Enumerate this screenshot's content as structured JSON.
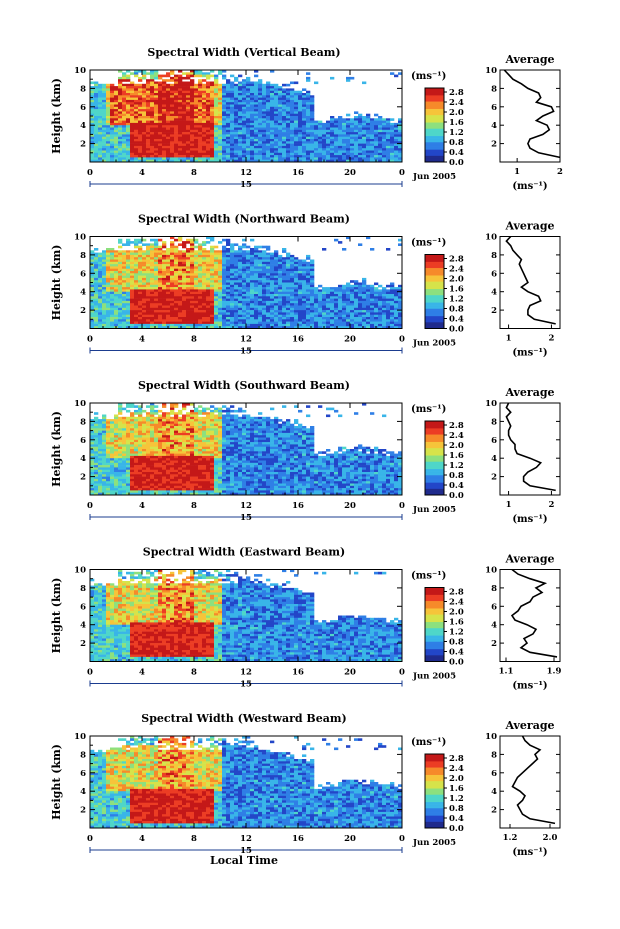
{
  "chart_data": [
    {
      "type": "heatmap",
      "title": "Spectral Width (Vertical Beam)",
      "ylabel": "Height (km)",
      "yticks": [
        "2",
        "4",
        "6",
        "8",
        "10"
      ],
      "xticks": [
        "0",
        "4",
        "8",
        "12",
        "16",
        "20",
        "0"
      ],
      "date_day": "15",
      "date_month": "Jun 2005",
      "colorbar_unit": "(ms⁻¹)",
      "colorbar_ticks": [
        "2.8",
        "2.4",
        "2.0",
        "1.6",
        "1.2",
        "0.8",
        "0.4",
        "0.0"
      ],
      "average": {
        "title": "Average",
        "xlabel": "(ms⁻¹)",
        "xticks": [
          "1",
          "2"
        ],
        "xlim": [
          0.6,
          2.0
        ],
        "yticks": [
          "2",
          "4",
          "6",
          "8",
          "10"
        ],
        "height_km": [
          0.5,
          1.0,
          1.5,
          2.0,
          2.5,
          3.0,
          3.5,
          4.0,
          4.5,
          5.0,
          5.5,
          6.0,
          6.5,
          7.0,
          7.5,
          8.0,
          8.5,
          9.0,
          9.5,
          10.0
        ],
        "width_ms": [
          2.0,
          1.5,
          1.3,
          1.25,
          1.3,
          1.6,
          1.75,
          1.7,
          1.45,
          1.6,
          1.85,
          1.8,
          1.45,
          1.55,
          1.5,
          1.25,
          1.1,
          0.9,
          0.8,
          0.7
        ]
      }
    },
    {
      "type": "heatmap",
      "title": "Spectral Width (Northward Beam)",
      "ylabel": "Height (km)",
      "yticks": [
        "2",
        "4",
        "6",
        "8",
        "10"
      ],
      "xticks": [
        "0",
        "4",
        "8",
        "12",
        "16",
        "20",
        "0"
      ],
      "date_day": "15",
      "date_month": "Jun 2005",
      "colorbar_unit": "(ms⁻¹)",
      "colorbar_ticks": [
        "2.8",
        "2.4",
        "2.0",
        "1.6",
        "1.2",
        "0.8",
        "0.4",
        "0.0"
      ],
      "average": {
        "title": "Average",
        "xlabel": "(ms⁻¹)",
        "xticks": [
          "1",
          "2"
        ],
        "xlim": [
          0.8,
          2.2
        ],
        "yticks": [
          "2",
          "4",
          "6",
          "8",
          "10"
        ],
        "height_km": [
          0.5,
          1.0,
          1.5,
          2.0,
          2.5,
          3.0,
          3.5,
          4.0,
          4.5,
          5.0,
          5.5,
          6.0,
          6.5,
          7.0,
          7.5,
          8.0,
          8.5,
          9.0,
          9.5,
          10.0
        ],
        "width_ms": [
          2.1,
          1.6,
          1.45,
          1.45,
          1.5,
          1.75,
          1.7,
          1.45,
          1.3,
          1.45,
          1.4,
          1.35,
          1.3,
          1.25,
          1.3,
          1.2,
          1.1,
          1.05,
          0.95,
          1.05
        ]
      }
    },
    {
      "type": "heatmap",
      "title": "Spectral Width (Southward Beam)",
      "ylabel": "Height (km)",
      "yticks": [
        "2",
        "4",
        "6",
        "8",
        "10"
      ],
      "xticks": [
        "0",
        "4",
        "8",
        "12",
        "16",
        "20",
        "0"
      ],
      "date_day": "15",
      "date_month": "Jun 2005",
      "colorbar_unit": "(ms⁻¹)",
      "colorbar_ticks": [
        "2.8",
        "2.4",
        "2.0",
        "1.6",
        "1.2",
        "0.8",
        "0.4",
        "0.0"
      ],
      "average": {
        "title": "Average",
        "xlabel": "(ms⁻¹)",
        "xticks": [
          "1",
          "2"
        ],
        "xlim": [
          0.8,
          2.2
        ],
        "yticks": [
          "2",
          "4",
          "6",
          "8",
          "10"
        ],
        "height_km": [
          0.5,
          1.0,
          1.5,
          2.0,
          2.5,
          3.0,
          3.5,
          4.0,
          4.5,
          5.0,
          5.5,
          6.0,
          6.5,
          7.0,
          7.5,
          8.0,
          8.5,
          9.0,
          9.5,
          10.0
        ],
        "width_ms": [
          2.1,
          1.5,
          1.35,
          1.35,
          1.45,
          1.65,
          1.75,
          1.5,
          1.2,
          1.15,
          1.15,
          1.05,
          1.0,
          1.0,
          1.05,
          1.0,
          0.95,
          1.05,
          0.95,
          1.0
        ]
      }
    },
    {
      "type": "heatmap",
      "title": "Spectral Width (Eastward Beam)",
      "ylabel": "Height (km)",
      "yticks": [
        "2",
        "4",
        "6",
        "8",
        "10"
      ],
      "xticks": [
        "0",
        "4",
        "8",
        "12",
        "16",
        "20",
        "0"
      ],
      "date_day": "15",
      "date_month": "Jun 2005",
      "colorbar_unit": "(ms⁻¹)",
      "colorbar_ticks": [
        "2.8",
        "2.4",
        "2.0",
        "1.6",
        "1.2",
        "0.8",
        "0.4",
        "0.0"
      ],
      "average": {
        "title": "Average",
        "xlabel": "(ms⁻¹)",
        "xticks": [
          "1.1",
          "1.9"
        ],
        "xlim": [
          1.0,
          2.0
        ],
        "yticks": [
          "2",
          "4",
          "6",
          "8",
          "10"
        ],
        "height_km": [
          0.5,
          1.0,
          1.5,
          2.0,
          2.5,
          3.0,
          3.5,
          4.0,
          4.5,
          5.0,
          5.5,
          6.0,
          6.5,
          7.0,
          7.5,
          8.0,
          8.5,
          9.0,
          9.5,
          10.0
        ],
        "width_ms": [
          1.95,
          1.5,
          1.35,
          1.45,
          1.4,
          1.55,
          1.6,
          1.45,
          1.25,
          1.2,
          1.3,
          1.35,
          1.5,
          1.55,
          1.7,
          1.6,
          1.75,
          1.5,
          1.3,
          1.2
        ]
      }
    },
    {
      "type": "heatmap",
      "title": "Spectral Width (Westward Beam)",
      "ylabel": "Height (km)",
      "yticks": [
        "2",
        "4",
        "6",
        "8",
        "10"
      ],
      "xticks": [
        "0",
        "4",
        "8",
        "12",
        "16",
        "20",
        "0"
      ],
      "date_day": "15",
      "date_month": "Jun 2005",
      "colorbar_unit": "(ms⁻¹)",
      "colorbar_ticks": [
        "2.8",
        "2.4",
        "2.0",
        "1.6",
        "1.2",
        "0.8",
        "0.4",
        "0.0"
      ],
      "average": {
        "title": "Average",
        "xlabel": "(ms⁻¹)",
        "xticks": [
          "1.2",
          "2.0"
        ],
        "xlim": [
          1.0,
          2.2
        ],
        "yticks": [
          "2",
          "4",
          "6",
          "8",
          "10"
        ],
        "height_km": [
          0.5,
          1.0,
          1.5,
          2.0,
          2.5,
          3.0,
          3.5,
          4.0,
          4.5,
          5.0,
          5.5,
          6.0,
          6.5,
          7.0,
          7.5,
          8.0,
          8.5,
          9.0,
          9.5,
          10.0
        ],
        "width_ms": [
          2.1,
          1.6,
          1.45,
          1.4,
          1.35,
          1.45,
          1.5,
          1.4,
          1.25,
          1.3,
          1.35,
          1.45,
          1.55,
          1.65,
          1.75,
          1.7,
          1.8,
          1.6,
          1.5,
          1.45
        ]
      }
    }
  ],
  "figure": {
    "xlabel": "Local Time"
  },
  "colors": {
    "colormap": [
      "#1f2a8c",
      "#2346c8",
      "#2f7fe6",
      "#39b5e8",
      "#4fd6c9",
      "#8de07e",
      "#d6e34a",
      "#f6c43a",
      "#f68a2a",
      "#ec3d24",
      "#c41818"
    ],
    "date_line": "#1b3c8f"
  }
}
